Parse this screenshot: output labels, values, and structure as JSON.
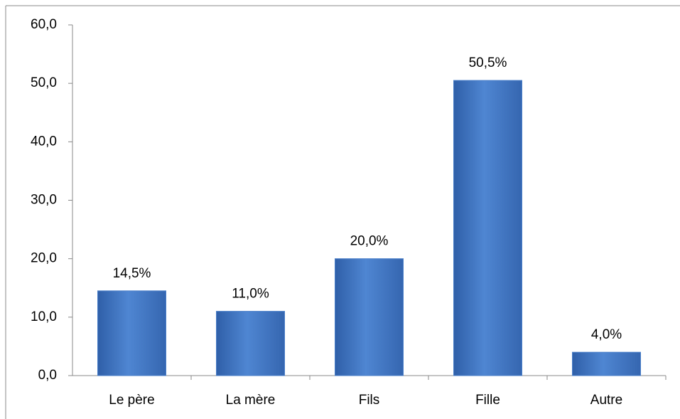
{
  "chart_data": {
    "type": "bar",
    "categories": [
      "Le père",
      "La mère",
      "Fils",
      "Fille",
      "Autre"
    ],
    "values": [
      14.5,
      11.0,
      20.0,
      50.5,
      4.0
    ],
    "value_labels": [
      "14,5%",
      "11,0%",
      "20,0%",
      "50,5%",
      "4,0%"
    ],
    "color": "#4a7fc9",
    "ylim": [
      0,
      60
    ],
    "yticks": [
      {
        "value": 0,
        "label": "0,0"
      },
      {
        "value": 10,
        "label": "10,0"
      },
      {
        "value": 20,
        "label": "20,0"
      },
      {
        "value": 30,
        "label": "30,0"
      },
      {
        "value": 40,
        "label": "40,0"
      },
      {
        "value": 50,
        "label": "50,0"
      },
      {
        "value": 60,
        "label": "60,0"
      }
    ],
    "grid": false
  }
}
